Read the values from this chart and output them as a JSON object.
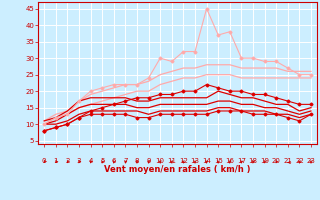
{
  "background_color": "#cceeff",
  "grid_color": "#ffffff",
  "x_label": "Vent moyen/en rafales ( km/h )",
  "x_ticks": [
    0,
    1,
    2,
    3,
    4,
    5,
    6,
    7,
    8,
    9,
    10,
    11,
    12,
    13,
    14,
    15,
    16,
    17,
    18,
    19,
    20,
    21,
    22,
    23
  ],
  "y_ticks": [
    5,
    10,
    15,
    20,
    25,
    30,
    35,
    40,
    45
  ],
  "xlim": [
    -0.5,
    23.5
  ],
  "ylim": [
    4,
    47
  ],
  "series": [
    {
      "x": [
        0,
        1,
        2,
        3,
        4,
        5,
        6,
        7,
        8,
        9,
        10,
        11,
        12,
        13,
        14,
        15,
        16,
        17,
        18,
        19,
        20,
        21,
        22,
        23
      ],
      "y": [
        10,
        12,
        13,
        17,
        20,
        21,
        22,
        22,
        22,
        24,
        30,
        29,
        32,
        32,
        45,
        37,
        38,
        30,
        30,
        29,
        29,
        27,
        25,
        25
      ],
      "color": "#ffaaaa",
      "marker": "D",
      "markersize": 1.5,
      "linewidth": 0.8,
      "zorder": 6
    },
    {
      "x": [
        0,
        1,
        2,
        3,
        4,
        5,
        6,
        7,
        8,
        9,
        10,
        11,
        12,
        13,
        14,
        15,
        16,
        17,
        18,
        19,
        20,
        21,
        22,
        23
      ],
      "y": [
        11,
        13,
        14,
        17,
        19,
        20,
        21,
        22,
        22,
        23,
        25,
        26,
        27,
        27,
        28,
        28,
        28,
        27,
        27,
        27,
        27,
        26,
        26,
        26
      ],
      "color": "#ffaaaa",
      "marker": null,
      "linewidth": 0.9,
      "zorder": 2
    },
    {
      "x": [
        0,
        1,
        2,
        3,
        4,
        5,
        6,
        7,
        8,
        9,
        10,
        11,
        12,
        13,
        14,
        15,
        16,
        17,
        18,
        19,
        20,
        21,
        22,
        23
      ],
      "y": [
        10,
        12,
        13,
        15,
        16,
        17,
        18,
        19,
        20,
        20,
        22,
        23,
        24,
        24,
        25,
        25,
        25,
        24,
        24,
        24,
        24,
        24,
        24,
        24
      ],
      "color": "#ffaaaa",
      "marker": null,
      "linewidth": 0.9,
      "zorder": 2
    },
    {
      "x": [
        0,
        1,
        2,
        3,
        4,
        5,
        6,
        7,
        8,
        9,
        10,
        11,
        12,
        13,
        14,
        15,
        16,
        17,
        18,
        19,
        20,
        21,
        22,
        23
      ],
      "y": [
        8,
        9,
        10,
        12,
        14,
        15,
        16,
        17,
        18,
        18,
        19,
        19,
        20,
        20,
        22,
        21,
        20,
        20,
        19,
        19,
        18,
        17,
        16,
        16
      ],
      "color": "#dd0000",
      "marker": "D",
      "markersize": 1.5,
      "linewidth": 0.8,
      "zorder": 5
    },
    {
      "x": [
        0,
        1,
        2,
        3,
        4,
        5,
        6,
        7,
        8,
        9,
        10,
        11,
        12,
        13,
        14,
        15,
        16,
        17,
        18,
        19,
        20,
        21,
        22,
        23
      ],
      "y": [
        11,
        12,
        14,
        17,
        18,
        18,
        18,
        18,
        17,
        17,
        18,
        18,
        18,
        18,
        18,
        20,
        19,
        18,
        18,
        17,
        16,
        16,
        14,
        15
      ],
      "color": "#dd0000",
      "marker": null,
      "linewidth": 0.9,
      "zorder": 3
    },
    {
      "x": [
        0,
        1,
        2,
        3,
        4,
        5,
        6,
        7,
        8,
        9,
        10,
        11,
        12,
        13,
        14,
        15,
        16,
        17,
        18,
        19,
        20,
        21,
        22,
        23
      ],
      "y": [
        10,
        11,
        13,
        15,
        16,
        16,
        16,
        16,
        15,
        15,
        16,
        16,
        16,
        16,
        16,
        17,
        17,
        16,
        16,
        15,
        15,
        14,
        13,
        14
      ],
      "color": "#dd0000",
      "marker": null,
      "linewidth": 0.9,
      "zorder": 4
    },
    {
      "x": [
        0,
        1,
        2,
        3,
        4,
        5,
        6,
        7,
        8,
        9,
        10,
        11,
        12,
        13,
        14,
        15,
        16,
        17,
        18,
        19,
        20,
        21,
        22,
        23
      ],
      "y": [
        10,
        10,
        11,
        13,
        14,
        14,
        14,
        14,
        14,
        13,
        14,
        14,
        14,
        14,
        14,
        15,
        15,
        14,
        14,
        14,
        13,
        13,
        12,
        13
      ],
      "color": "#dd0000",
      "marker": null,
      "linewidth": 0.9,
      "zorder": 4
    },
    {
      "x": [
        0,
        1,
        2,
        3,
        4,
        5,
        6,
        7,
        8,
        9,
        10,
        11,
        12,
        13,
        14,
        15,
        16,
        17,
        18,
        19,
        20,
        21,
        22,
        23
      ],
      "y": [
        8,
        9,
        10,
        12,
        13,
        13,
        13,
        13,
        12,
        12,
        13,
        13,
        13,
        13,
        13,
        14,
        14,
        14,
        13,
        13,
        13,
        12,
        11,
        13
      ],
      "color": "#dd0000",
      "marker": "D",
      "markersize": 1.5,
      "linewidth": 0.8,
      "zorder": 5
    }
  ],
  "arrow_angles_deg": [
    225,
    230,
    235,
    240,
    245,
    250,
    255,
    260,
    265,
    270,
    275,
    280,
    285,
    275,
    270,
    265,
    260,
    255,
    250,
    245,
    240,
    180,
    270,
    270
  ],
  "tick_fontsize": 5,
  "axis_label_fontsize": 6
}
